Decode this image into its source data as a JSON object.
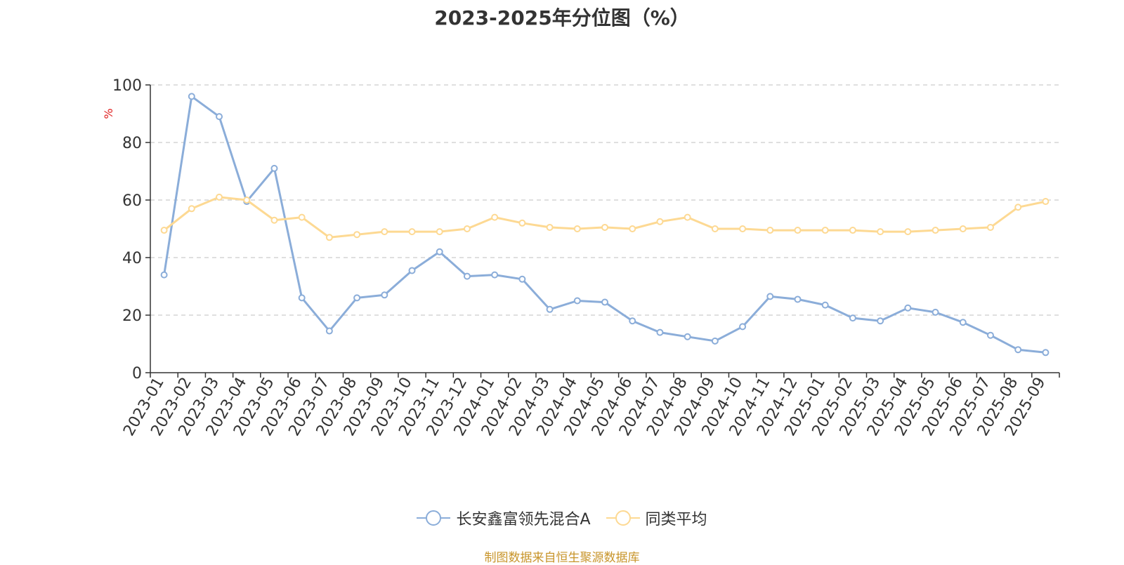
{
  "title": "2023-2025年分位图（%）",
  "source": "制图数据来自恒生聚源数据库",
  "colors": {
    "series1": "#8badd9",
    "series2": "#fdd993",
    "axis": "#333333",
    "grid": "#cccccc",
    "unit": "#e02020",
    "source": "#c8952b"
  },
  "chart_data": {
    "type": "line",
    "ylabel": "%",
    "ylim": [
      0,
      100
    ],
    "yticks": [
      0,
      20,
      40,
      60,
      80,
      100
    ],
    "grid": "horizontal dashed",
    "legend_position": "bottom-center",
    "categories": [
      "2023-01",
      "2023-02",
      "2023-03",
      "2023-04",
      "2023-05",
      "2023-06",
      "2023-07",
      "2023-08",
      "2023-09",
      "2023-10",
      "2023-11",
      "2023-12",
      "2024-01",
      "2024-02",
      "2024-03",
      "2024-04",
      "2024-05",
      "2024-06",
      "2024-07",
      "2024-08",
      "2024-09",
      "2024-10",
      "2024-11",
      "2024-12",
      "2025-01",
      "2025-02",
      "2025-03",
      "2025-04",
      "2025-05",
      "2025-06",
      "2025-07",
      "2025-08",
      "2025-09"
    ],
    "series": [
      {
        "name": "长安鑫富领先混合A",
        "color": "#8badd9",
        "values": [
          34,
          96,
          89,
          59.5,
          71,
          26,
          14.5,
          26,
          27,
          35.5,
          42,
          33.5,
          34,
          32.5,
          22,
          25,
          24.5,
          18,
          14,
          12.5,
          11,
          16,
          26.5,
          25.5,
          23.5,
          19,
          18,
          22.5,
          21,
          17.5,
          13,
          8,
          7
        ]
      },
      {
        "name": "同类平均",
        "color": "#fdd993",
        "values": [
          49.5,
          57,
          61,
          60,
          53,
          54,
          47,
          48,
          49,
          49,
          49,
          50,
          54,
          52,
          50.5,
          50,
          50.5,
          50,
          52.5,
          54,
          50,
          50,
          49.5,
          49.5,
          49.5,
          49.5,
          49,
          49,
          49.5,
          50,
          50.5,
          57.5,
          59.5
        ]
      }
    ]
  }
}
